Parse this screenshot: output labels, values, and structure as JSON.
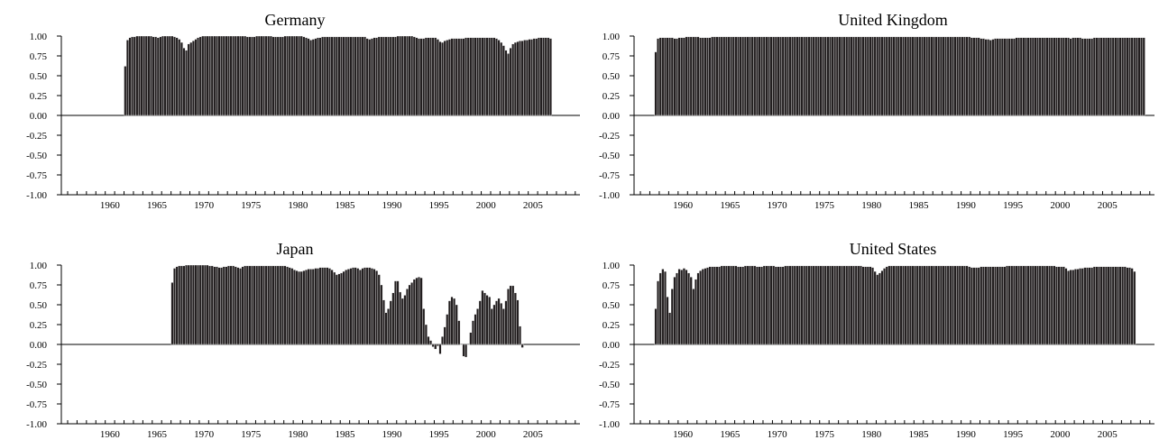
{
  "chart_data": [
    {
      "type": "bar",
      "title": "Germany",
      "ylim": [
        -1,
        1
      ],
      "yticks": [
        "1.00",
        "0.75",
        "0.50",
        "0.25",
        "0.00",
        "-0.25",
        "-0.50",
        "-0.75",
        "-1.00"
      ],
      "xticks": [
        "1960",
        "1965",
        "1970",
        "1975",
        "1980",
        "1985",
        "1990",
        "1995",
        "2000",
        "2005"
      ],
      "xlim": [
        1955.5,
        2010
      ],
      "grid": false,
      "x_start": 1961.5,
      "x_step": 0.25,
      "values": [
        0.62,
        0.95,
        0.98,
        0.99,
        0.99,
        1.0,
        1.0,
        1.0,
        1.0,
        1.0,
        1.0,
        1.0,
        0.99,
        0.99,
        0.98,
        0.99,
        1.0,
        1.0,
        1.0,
        1.0,
        1.0,
        0.99,
        0.98,
        0.96,
        0.92,
        0.85,
        0.82,
        0.9,
        0.92,
        0.94,
        0.96,
        0.98,
        0.99,
        1.0,
        1.0,
        1.0,
        1.0,
        1.0,
        1.0,
        1.0,
        1.0,
        1.0,
        1.0,
        1.0,
        1.0,
        1.0,
        1.0,
        1.0,
        1.0,
        1.0,
        1.0,
        1.0,
        0.99,
        0.99,
        0.99,
        0.99,
        1.0,
        1.0,
        1.0,
        1.0,
        1.0,
        1.0,
        1.0,
        0.99,
        0.99,
        0.99,
        0.99,
        0.99,
        1.0,
        1.0,
        1.0,
        1.0,
        1.0,
        1.0,
        1.0,
        1.0,
        0.99,
        0.98,
        0.97,
        0.95,
        0.96,
        0.97,
        0.98,
        0.98,
        0.99,
        0.99,
        0.99,
        0.99,
        0.99,
        0.99,
        0.99,
        0.99,
        0.99,
        0.99,
        0.99,
        0.99,
        0.99,
        0.99,
        0.99,
        0.99,
        0.99,
        0.99,
        0.99,
        0.97,
        0.96,
        0.97,
        0.98,
        0.98,
        0.99,
        0.99,
        0.99,
        0.99,
        0.99,
        0.99,
        0.99,
        0.99,
        1.0,
        1.0,
        1.0,
        1.0,
        1.0,
        1.0,
        1.0,
        0.99,
        0.98,
        0.97,
        0.97,
        0.97,
        0.98,
        0.98,
        0.98,
        0.98,
        0.98,
        0.96,
        0.93,
        0.92,
        0.94,
        0.95,
        0.96,
        0.97,
        0.97,
        0.97,
        0.97,
        0.97,
        0.97,
        0.98,
        0.98,
        0.98,
        0.98,
        0.98,
        0.98,
        0.98,
        0.98,
        0.98,
        0.98,
        0.98,
        0.98,
        0.98,
        0.97,
        0.95,
        0.92,
        0.88,
        0.82,
        0.78,
        0.85,
        0.9,
        0.92,
        0.93,
        0.94,
        0.94,
        0.95,
        0.95,
        0.96,
        0.96,
        0.97,
        0.97,
        0.98,
        0.98,
        0.98,
        0.98,
        0.98,
        0.97
      ]
    },
    {
      "type": "bar",
      "title": "United Kingdom",
      "ylim": [
        -1,
        1
      ],
      "yticks": [
        "1.00",
        "0.75",
        "0.50",
        "0.25",
        "0.00",
        "-0.25",
        "-0.50",
        "-0.75",
        "-1.00"
      ],
      "xticks": [
        "1960",
        "1965",
        "1970",
        "1975",
        "1980",
        "1985",
        "1990",
        "1995",
        "2000",
        "2005"
      ],
      "xlim": [
        1955.5,
        2010
      ],
      "grid": false,
      "x_start": 1957.0,
      "x_step": 0.25,
      "values": [
        0.8,
        0.97,
        0.98,
        0.98,
        0.98,
        0.98,
        0.98,
        0.98,
        0.97,
        0.97,
        0.98,
        0.98,
        0.98,
        0.99,
        0.99,
        0.99,
        0.99,
        0.99,
        0.99,
        0.98,
        0.98,
        0.98,
        0.98,
        0.98,
        0.99,
        0.99,
        0.99,
        0.99,
        0.99,
        0.99,
        0.99,
        0.99,
        0.99,
        0.99,
        0.99,
        0.99,
        0.99,
        0.99,
        0.99,
        0.99,
        0.99,
        0.99,
        0.99,
        0.99,
        0.99,
        0.99,
        0.99,
        0.99,
        0.99,
        0.99,
        0.99,
        0.99,
        0.99,
        0.99,
        0.99,
        0.99,
        0.99,
        0.99,
        0.99,
        0.99,
        0.99,
        0.99,
        0.99,
        0.99,
        0.99,
        0.99,
        0.99,
        0.99,
        0.99,
        0.99,
        0.99,
        0.99,
        0.99,
        0.99,
        0.99,
        0.99,
        0.99,
        0.99,
        0.99,
        0.99,
        0.99,
        0.99,
        0.99,
        0.99,
        0.99,
        0.99,
        0.99,
        0.99,
        0.99,
        0.99,
        0.99,
        0.99,
        0.99,
        0.99,
        0.99,
        0.99,
        0.99,
        0.99,
        0.99,
        0.99,
        0.99,
        0.99,
        0.99,
        0.99,
        0.99,
        0.99,
        0.99,
        0.99,
        0.99,
        0.99,
        0.99,
        0.99,
        0.99,
        0.99,
        0.99,
        0.99,
        0.99,
        0.99,
        0.99,
        0.99,
        0.99,
        0.99,
        0.99,
        0.99,
        0.99,
        0.99,
        0.99,
        0.99,
        0.99,
        0.99,
        0.99,
        0.99,
        0.99,
        0.99,
        0.98,
        0.98,
        0.98,
        0.98,
        0.97,
        0.97,
        0.96,
        0.96,
        0.95,
        0.96,
        0.97,
        0.97,
        0.97,
        0.97,
        0.97,
        0.97,
        0.97,
        0.97,
        0.97,
        0.98,
        0.98,
        0.98,
        0.98,
        0.98,
        0.98,
        0.98,
        0.98,
        0.98,
        0.98,
        0.98,
        0.98,
        0.98,
        0.98,
        0.98,
        0.98,
        0.98,
        0.98,
        0.98,
        0.98,
        0.98,
        0.98,
        0.98,
        0.97,
        0.98,
        0.98,
        0.98,
        0.98,
        0.97,
        0.97,
        0.97,
        0.97,
        0.97,
        0.98,
        0.98,
        0.98,
        0.98,
        0.98,
        0.98,
        0.98,
        0.98,
        0.98,
        0.98,
        0.98,
        0.98,
        0.98,
        0.98,
        0.98,
        0.98,
        0.98,
        0.98,
        0.98,
        0.98,
        0.98,
        0.98
      ]
    },
    {
      "type": "bar",
      "title": "Japan",
      "ylim": [
        -1,
        1
      ],
      "yticks": [
        "1.00",
        "0.75",
        "0.50",
        "0.25",
        "0.00",
        "-0.25",
        "-0.50",
        "-0.75",
        "-1.00"
      ],
      "xticks": [
        "1960",
        "1965",
        "1970",
        "1975",
        "1980",
        "1985",
        "1990",
        "1995",
        "2000",
        "2005"
      ],
      "xlim": [
        1955.5,
        2010
      ],
      "grid": false,
      "x_start": 1966.5,
      "x_step": 0.25,
      "values": [
        0.78,
        0.96,
        0.98,
        0.99,
        0.99,
        0.99,
        1.0,
        1.0,
        1.0,
        1.0,
        1.0,
        1.0,
        1.0,
        1.0,
        1.0,
        1.0,
        0.99,
        0.99,
        0.98,
        0.98,
        0.97,
        0.97,
        0.98,
        0.98,
        0.99,
        0.99,
        0.99,
        0.98,
        0.97,
        0.96,
        0.98,
        0.99,
        0.99,
        0.99,
        0.99,
        0.99,
        0.99,
        0.99,
        0.99,
        0.99,
        0.99,
        0.99,
        0.99,
        0.99,
        0.99,
        0.99,
        0.99,
        0.99,
        0.99,
        0.98,
        0.97,
        0.96,
        0.94,
        0.93,
        0.92,
        0.92,
        0.93,
        0.94,
        0.95,
        0.95,
        0.95,
        0.96,
        0.96,
        0.97,
        0.97,
        0.97,
        0.97,
        0.96,
        0.94,
        0.91,
        0.88,
        0.89,
        0.9,
        0.92,
        0.94,
        0.95,
        0.96,
        0.97,
        0.97,
        0.96,
        0.94,
        0.96,
        0.97,
        0.97,
        0.97,
        0.96,
        0.95,
        0.93,
        0.88,
        0.75,
        0.56,
        0.4,
        0.45,
        0.55,
        0.65,
        0.8,
        0.8,
        0.66,
        0.58,
        0.62,
        0.7,
        0.75,
        0.78,
        0.82,
        0.84,
        0.85,
        0.84,
        0.45,
        0.25,
        0.1,
        0.05,
        -0.03,
        -0.06,
        -0.02,
        -0.12,
        0.1,
        0.22,
        0.38,
        0.55,
        0.6,
        0.58,
        0.5,
        0.3,
        0.0,
        -0.15,
        -0.16,
        0.0,
        0.15,
        0.3,
        0.38,
        0.45,
        0.55,
        0.68,
        0.65,
        0.62,
        0.6,
        0.45,
        0.5,
        0.55,
        0.58,
        0.52,
        0.45,
        0.55,
        0.7,
        0.74,
        0.74,
        0.65,
        0.56,
        0.23,
        -0.04
      ]
    },
    {
      "type": "bar",
      "title": "United States",
      "ylim": [
        -1,
        1
      ],
      "yticks": [
        "1.00",
        "0.75",
        "0.50",
        "0.25",
        "0.00",
        "-0.25",
        "-0.50",
        "-0.75",
        "-1.00"
      ],
      "xticks": [
        "1960",
        "1965",
        "1970",
        "1975",
        "1980",
        "1985",
        "1990",
        "1995",
        "2000",
        "2005"
      ],
      "xlim": [
        1955.5,
        2010
      ],
      "grid": false,
      "x_start": 1957.0,
      "x_step": 0.25,
      "values": [
        0.45,
        0.8,
        0.9,
        0.95,
        0.92,
        0.6,
        0.4,
        0.7,
        0.85,
        0.9,
        0.95,
        0.94,
        0.96,
        0.94,
        0.9,
        0.85,
        0.7,
        0.82,
        0.9,
        0.93,
        0.95,
        0.96,
        0.97,
        0.98,
        0.98,
        0.98,
        0.98,
        0.98,
        0.99,
        0.99,
        0.99,
        0.99,
        0.99,
        0.99,
        0.99,
        0.98,
        0.98,
        0.98,
        0.99,
        0.99,
        0.99,
        0.99,
        0.99,
        0.98,
        0.98,
        0.98,
        0.99,
        0.99,
        0.99,
        0.99,
        0.99,
        0.98,
        0.98,
        0.98,
        0.98,
        0.99,
        0.99,
        0.99,
        0.99,
        0.99,
        0.99,
        0.99,
        0.99,
        0.99,
        0.99,
        0.99,
        0.99,
        0.99,
        0.99,
        0.99,
        0.99,
        0.99,
        0.99,
        0.99,
        0.99,
        0.99,
        0.99,
        0.99,
        0.99,
        0.99,
        0.99,
        0.99,
        0.99,
        0.99,
        0.99,
        0.99,
        0.99,
        0.99,
        0.98,
        0.98,
        0.98,
        0.98,
        0.97,
        0.92,
        0.88,
        0.9,
        0.93,
        0.96,
        0.98,
        0.99,
        0.99,
        0.99,
        0.99,
        0.99,
        0.99,
        0.99,
        0.99,
        0.99,
        0.99,
        0.99,
        0.99,
        0.99,
        0.99,
        0.99,
        0.99,
        0.99,
        0.99,
        0.99,
        0.99,
        0.99,
        0.99,
        0.99,
        0.99,
        0.99,
        0.99,
        0.99,
        0.99,
        0.99,
        0.99,
        0.99,
        0.99,
        0.99,
        0.99,
        0.98,
        0.97,
        0.97,
        0.97,
        0.97,
        0.98,
        0.98,
        0.98,
        0.98,
        0.98,
        0.98,
        0.98,
        0.98,
        0.98,
        0.98,
        0.98,
        0.99,
        0.99,
        0.99,
        0.99,
        0.99,
        0.99,
        0.99,
        0.99,
        0.99,
        0.99,
        0.99,
        0.99,
        0.99,
        0.99,
        0.99,
        0.99,
        0.99,
        0.99,
        0.99,
        0.99,
        0.99,
        0.98,
        0.98,
        0.98,
        0.98,
        0.96,
        0.93,
        0.94,
        0.94,
        0.95,
        0.95,
        0.96,
        0.96,
        0.97,
        0.97,
        0.97,
        0.97,
        0.98,
        0.98,
        0.98,
        0.98,
        0.98,
        0.98,
        0.98,
        0.98,
        0.98,
        0.98,
        0.98,
        0.98,
        0.98,
        0.98,
        0.97,
        0.97,
        0.96,
        0.92
      ]
    }
  ]
}
